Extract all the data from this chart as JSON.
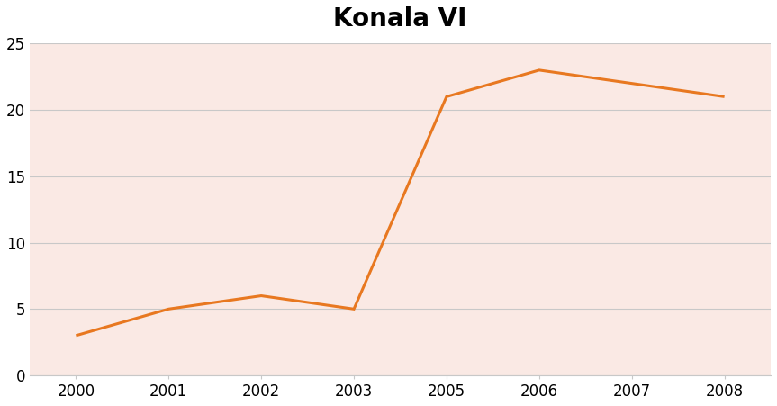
{
  "title": "Konala VI",
  "title_fontsize": 20,
  "title_fontweight": "bold",
  "x_positions": [
    0,
    1,
    2,
    3,
    4,
    5,
    6,
    7
  ],
  "x_labels": [
    "2000",
    "2001",
    "2002",
    "2003",
    "2005",
    "2006",
    "2007",
    "2008"
  ],
  "y": [
    3,
    5,
    6,
    5,
    21,
    23,
    22,
    21
  ],
  "line_color": "#E87820",
  "line_width": 2.2,
  "plot_bg_color": "#FAE9E4",
  "outer_bg_color": "#FFFFFF",
  "ylim": [
    0,
    25
  ],
  "yticks": [
    0,
    5,
    10,
    15,
    20,
    25
  ],
  "grid_color": "#C8C8C8",
  "tick_fontsize": 12
}
